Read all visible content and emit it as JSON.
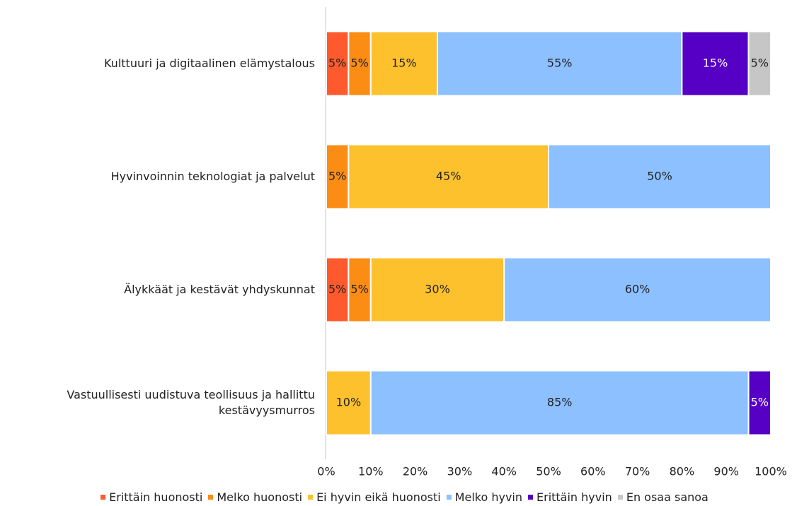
{
  "chart_data": {
    "type": "stacked-barh",
    "categories": [
      "Kulttuuri ja digitaalinen elämystalous",
      "Hyvinvoinnin teknologiat ja palvelut",
      "Älykkäät ja kestävät yhdyskunnat",
      "Vastuullisesti uudistuva teollisuus ja hallittu kestävyysmurros"
    ],
    "series": [
      {
        "name": "Erittäin huonosti",
        "color": "#ff5a2e",
        "values": [
          5,
          null,
          5,
          null
        ],
        "value_labels": [
          "5%",
          null,
          "5%",
          null
        ]
      },
      {
        "name": "Melko huonosti",
        "color": "#fb8c14",
        "values": [
          5,
          5,
          5,
          null
        ],
        "value_labels": [
          "5%",
          "5%",
          "5%",
          null
        ]
      },
      {
        "name": "Ei hyvin eikä huonosti",
        "color": "#fdc12e",
        "values": [
          15,
          45,
          30,
          10
        ],
        "value_labels": [
          "15%",
          "45%",
          "30%",
          "10%"
        ]
      },
      {
        "name": "Melko hyvin",
        "color": "#8cc0ff",
        "values": [
          55,
          50,
          60,
          85
        ],
        "value_labels": [
          "55%",
          "50%",
          "60%",
          "85%"
        ]
      },
      {
        "name": "Erittäin hyvin",
        "color": "#5500c4",
        "values": [
          15,
          null,
          null,
          5
        ],
        "value_labels": [
          "15%",
          null,
          null,
          "5%"
        ]
      },
      {
        "name": "En osaa sanoa",
        "color": "#c6c6c6",
        "values": [
          5,
          null,
          null,
          null
        ],
        "value_labels": [
          "5%",
          null,
          null,
          null
        ]
      }
    ],
    "xlim": [
      0,
      100
    ],
    "xticks": [
      {
        "value": 0,
        "label": "0%"
      },
      {
        "value": 10,
        "label": "10%"
      },
      {
        "value": 20,
        "label": "20%"
      },
      {
        "value": 30,
        "label": "30%"
      },
      {
        "value": 40,
        "label": "40%"
      },
      {
        "value": 50,
        "label": "50%"
      },
      {
        "value": 60,
        "label": "60%"
      },
      {
        "value": 70,
        "label": "70%"
      },
      {
        "value": 80,
        "label": "80%"
      },
      {
        "value": 90,
        "label": "90%"
      },
      {
        "value": 100,
        "label": "100%"
      }
    ],
    "legend": "bottom"
  }
}
